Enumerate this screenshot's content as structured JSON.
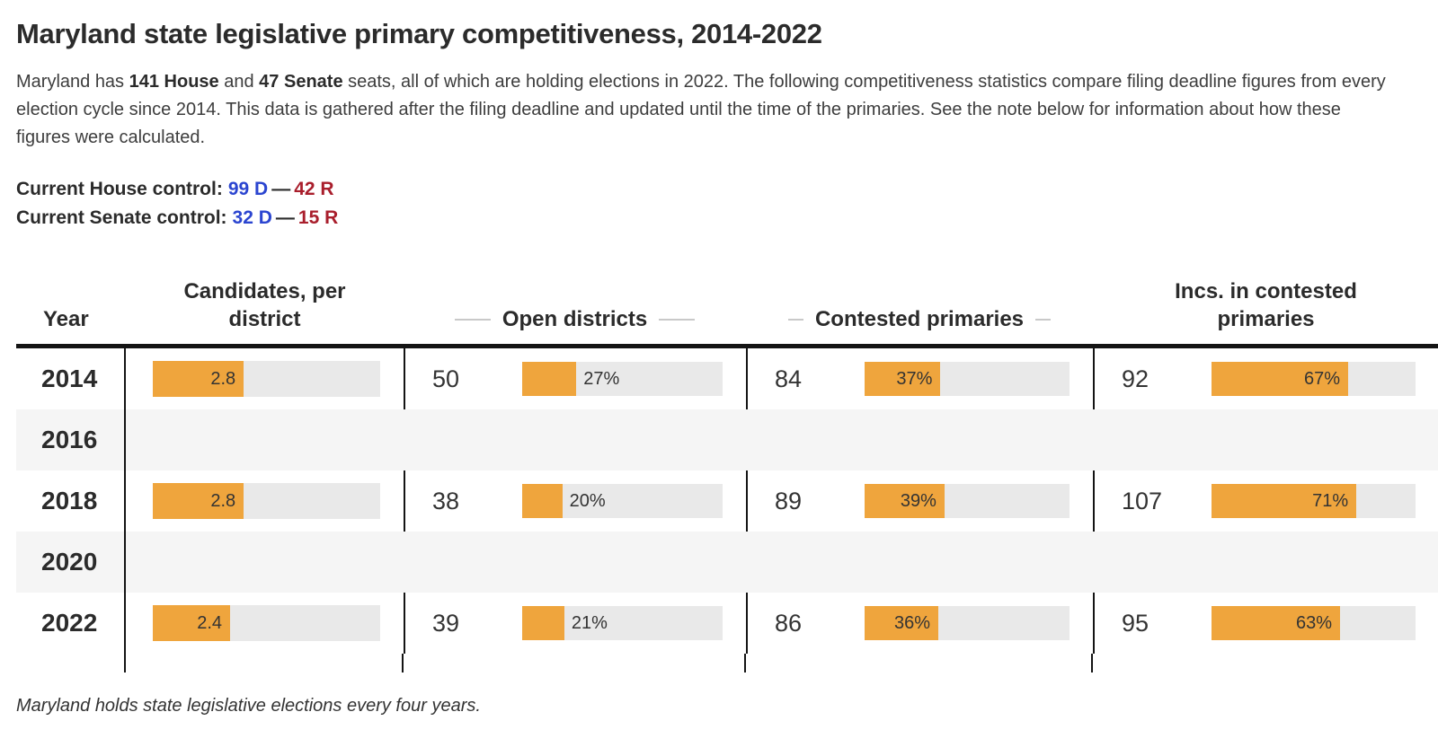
{
  "page": {
    "title": "Maryland state legislative primary competitiveness, 2014-2022",
    "intro": {
      "prefix": "Maryland has ",
      "house_seats": "141 House",
      "mid": " and ",
      "senate_seats": "47 Senate",
      "suffix": " seats, all of which are holding elections in 2022. The following competitiveness statistics compare filing deadline figures from every election cycle since 2014. This data is gathered after the filing deadline and updated until the time of the primaries. See the note below for information about how these figures were calculated."
    },
    "house_control": {
      "label": "Current House control:",
      "dem": "99 D",
      "dash": "—",
      "rep": "42 R"
    },
    "senate_control": {
      "label": "Current Senate control:",
      "dem": "32 D",
      "dash": "—",
      "rep": "15 R"
    },
    "footnote": "Maryland holds state legislative elections every four years."
  },
  "colors": {
    "dem-blue": "#2b45d0",
    "rep-red": "#a91e2c",
    "bar-orange": "#efa53d",
    "bar-track": "#e9e9e9",
    "empty-row": "#f5f5f5",
    "table-line": "#141414",
    "dash-gray": "#c9c9c9"
  },
  "chart_data": {
    "type": "table",
    "title": "Maryland state legislative primary competitiveness, 2014-2022",
    "headers": {
      "year": "Year",
      "candidates": "Candidates, per district",
      "open": "Open districts",
      "contested": "Contested primaries",
      "incs": "Incs. in contested primaries"
    },
    "rows": [
      {
        "year": "2014",
        "empty": false,
        "candidates": {
          "value": 2.8,
          "label": "2.8",
          "fill_pct": 40
        },
        "open": {
          "count": "50",
          "pct": 27,
          "label": "27%",
          "fill_pct": 27
        },
        "contested": {
          "count": "84",
          "pct": 37,
          "label": "37%",
          "fill_pct": 37
        },
        "incs": {
          "count": "92",
          "pct": 67,
          "label": "67%",
          "fill_pct": 67
        }
      },
      {
        "year": "2016",
        "empty": true
      },
      {
        "year": "2018",
        "empty": false,
        "candidates": {
          "value": 2.8,
          "label": "2.8",
          "fill_pct": 40
        },
        "open": {
          "count": "38",
          "pct": 20,
          "label": "20%",
          "fill_pct": 20
        },
        "contested": {
          "count": "89",
          "pct": 39,
          "label": "39%",
          "fill_pct": 39
        },
        "incs": {
          "count": "107",
          "pct": 71,
          "label": "71%",
          "fill_pct": 71
        }
      },
      {
        "year": "2020",
        "empty": true
      },
      {
        "year": "2022",
        "empty": false,
        "candidates": {
          "value": 2.4,
          "label": "2.4",
          "fill_pct": 34
        },
        "open": {
          "count": "39",
          "pct": 21,
          "label": "21%",
          "fill_pct": 21
        },
        "contested": {
          "count": "86",
          "pct": 36,
          "label": "36%",
          "fill_pct": 36
        },
        "incs": {
          "count": "95",
          "pct": 63,
          "label": "63%",
          "fill_pct": 63
        }
      }
    ]
  }
}
